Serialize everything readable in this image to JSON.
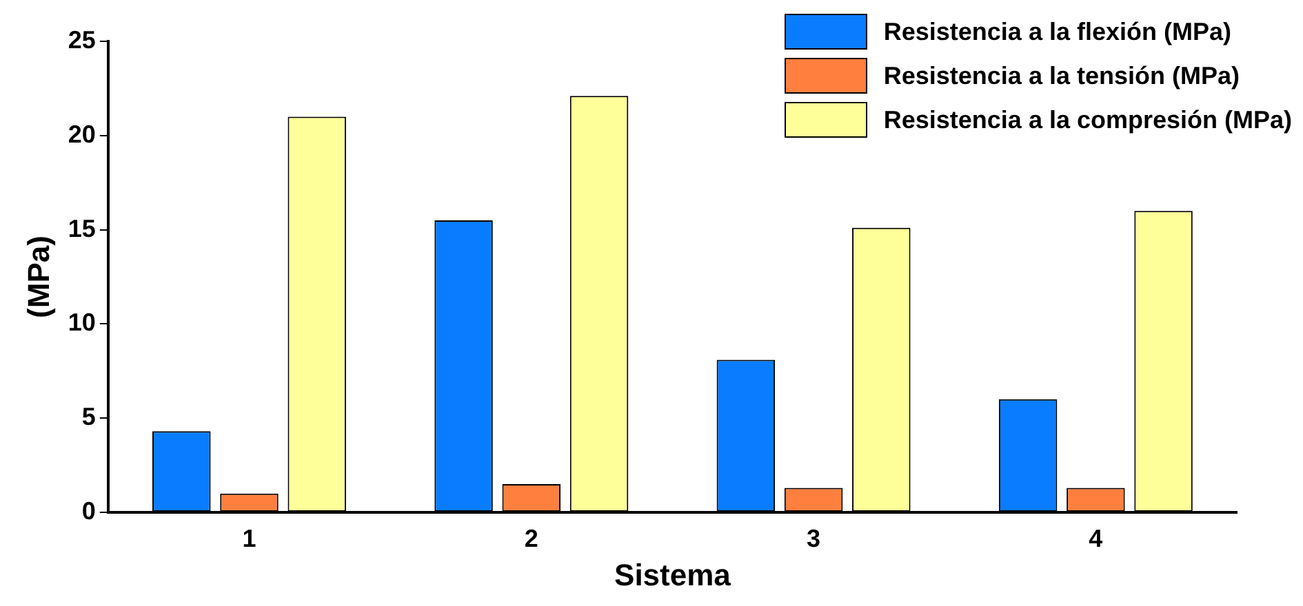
{
  "chart_data": {
    "type": "bar",
    "xlabel": "Sistema",
    "ylabel": "(MPa)",
    "categories": [
      "1",
      "2",
      "3",
      "4"
    ],
    "series": [
      {
        "name": "Resistencia a la flexión (MPa)",
        "color": "#0a7cff",
        "values": [
          4.3,
          15.5,
          8.1,
          6.0
        ]
      },
      {
        "name": "Resistencia a la tensión (MPa)",
        "color": "#ff7f3f",
        "values": [
          1.0,
          1.5,
          1.3,
          1.3
        ]
      },
      {
        "name": "Resistencia a la compresión (MPa)",
        "color": "#ffff99",
        "values": [
          21.0,
          22.1,
          15.1,
          16.0
        ]
      }
    ],
    "ylim": [
      0,
      25
    ],
    "yticks": [
      0,
      5,
      10,
      15,
      20,
      25
    ],
    "grid": false,
    "legend": "top right"
  }
}
